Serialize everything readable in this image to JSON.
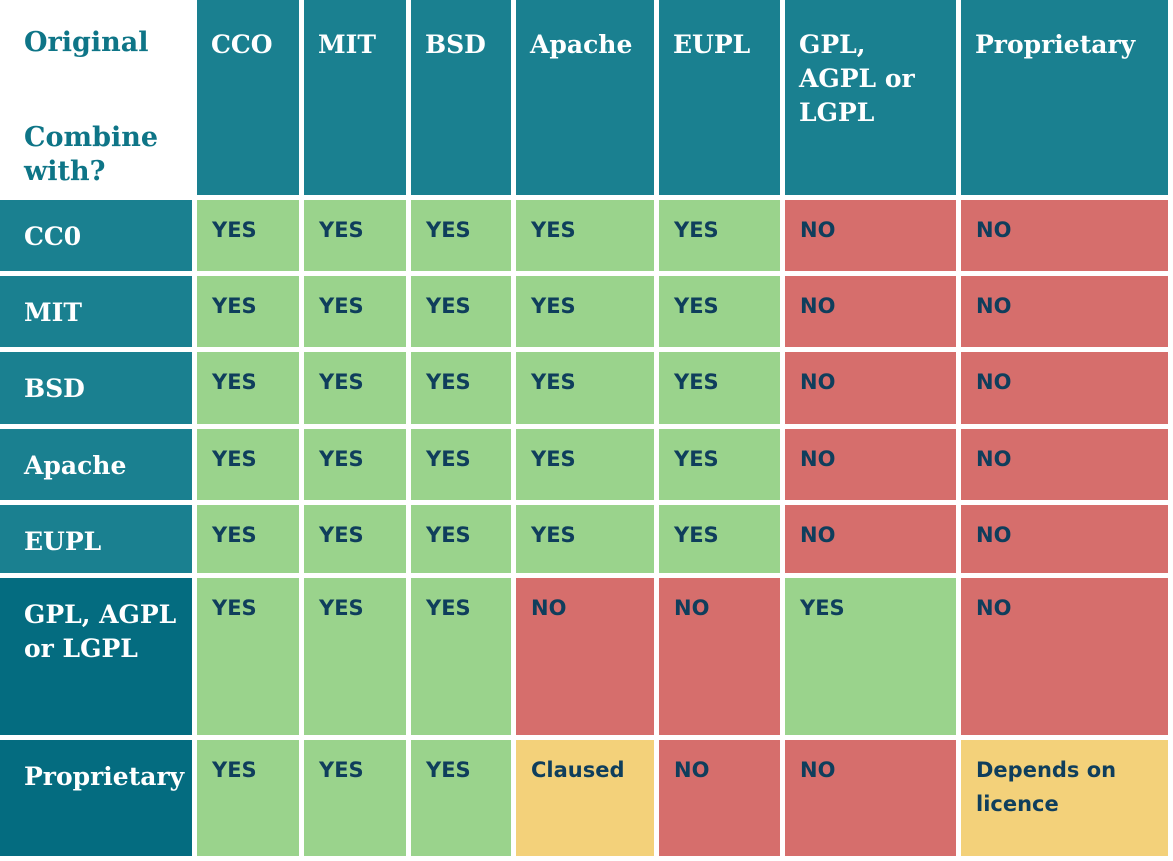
{
  "corner": {
    "original_label": "Original",
    "combine_label": "Combine with?"
  },
  "columns": [
    "CCO",
    "MIT",
    "BSD",
    "Apache",
    "EUPL",
    "GPL, AGPL or LGPL",
    "Proprietary"
  ],
  "rows": [
    {
      "label": "CC0",
      "values": [
        "YES",
        "YES",
        "YES",
        "YES",
        "YES",
        "NO",
        "NO"
      ]
    },
    {
      "label": "MIT",
      "values": [
        "YES",
        "YES",
        "YES",
        "YES",
        "YES",
        "NO",
        "NO"
      ]
    },
    {
      "label": "BSD",
      "values": [
        "YES",
        "YES",
        "YES",
        "YES",
        "YES",
        "NO",
        "NO"
      ]
    },
    {
      "label": "Apache",
      "values": [
        "YES",
        "YES",
        "YES",
        "YES",
        "YES",
        "NO",
        "NO"
      ]
    },
    {
      "label": "EUPL",
      "values": [
        "YES",
        "YES",
        "YES",
        "YES",
        "YES",
        "NO",
        "NO"
      ]
    },
    {
      "label": "GPL, AGPL or LGPL",
      "values": [
        "YES",
        "YES",
        "YES",
        "NO",
        "NO",
        "YES",
        "NO"
      ]
    },
    {
      "label": "Proprietary",
      "values": [
        "YES",
        "YES",
        "YES",
        "Claused",
        "NO",
        "NO",
        "Depends on licence"
      ]
    }
  ],
  "colors": {
    "header_teal": "#1a8090",
    "header_dark_teal": "#046c80",
    "corner_text": "#0e7587",
    "yes_green": "#9ad38c",
    "no_red": "#d66e6c",
    "conditional_yellow": "#f3d17a",
    "value_text": "#0f3e5c"
  }
}
